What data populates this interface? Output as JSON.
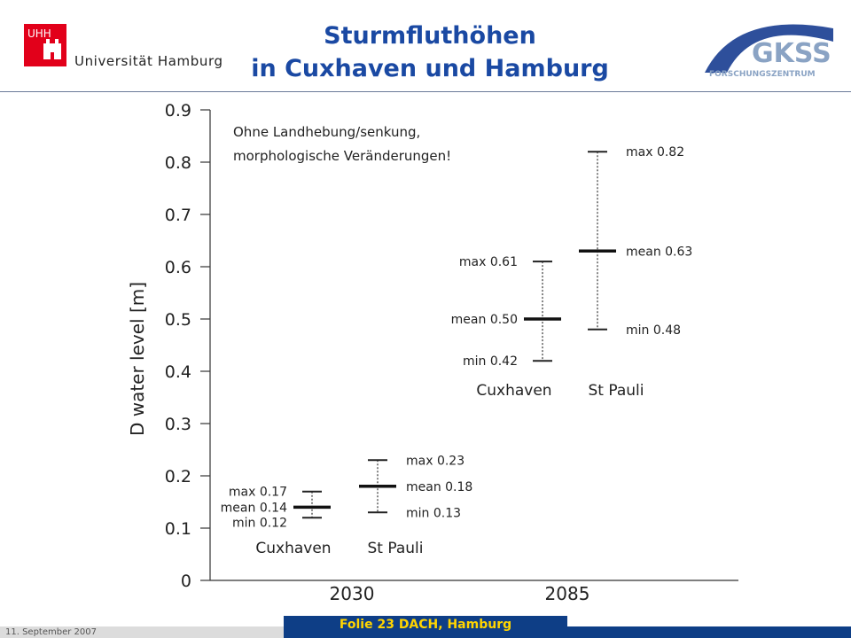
{
  "header": {
    "uhh_logo_text": "UHH",
    "university": "Universität Hamburg",
    "title_line1": "Sturmfluthöhen",
    "title_line2": "in Cuxhaven und Hamburg",
    "gkss_logo": "GKSS",
    "gkss_sub": "FORSCHUNGSZENTRUM"
  },
  "footer": {
    "date": "11. September 2007",
    "label": "Folie 23 DACH, Hamburg"
  },
  "colors": {
    "title": "#1a49a3",
    "footer_bg": "#0e3e86",
    "footer_text": "#ffd400",
    "uhh_red": "#e2001a"
  },
  "chart_data": {
    "type": "range",
    "ylabel": "D water level  [m]",
    "ylim": [
      0,
      0.9
    ],
    "yticks": [
      "0",
      "0.1",
      "0.2",
      "0.3",
      "0.4",
      "0.5",
      "0.6",
      "0.7",
      "0.8",
      "0.9"
    ],
    "xcategories": [
      "2030",
      "2085"
    ],
    "annotation": [
      "Ohne Landhebung/senkung,",
      "morphologische Veränderungen!"
    ],
    "groups": [
      {
        "year": "2030",
        "series": [
          {
            "station": "Cuxhaven",
            "max": 0.17,
            "mean": 0.14,
            "min": 0.12,
            "max_label": "max 0.17",
            "mean_label": "mean 0.14",
            "min_label": "min 0.12"
          },
          {
            "station": "St Pauli",
            "max": 0.23,
            "mean": 0.18,
            "min": 0.13,
            "max_label": "max 0.23",
            "mean_label": "mean 0.18",
            "min_label": "min 0.13"
          }
        ]
      },
      {
        "year": "2085",
        "series": [
          {
            "station": "Cuxhaven",
            "max": 0.61,
            "mean": 0.5,
            "min": 0.42,
            "max_label": "max 0.61",
            "mean_label": "mean 0.50",
            "min_label": "min 0.42"
          },
          {
            "station": "St Pauli",
            "max": 0.82,
            "mean": 0.63,
            "min": 0.48,
            "max_label": "max 0.82",
            "mean_label": "mean 0.63",
            "min_label": "min 0.48"
          }
        ]
      }
    ]
  }
}
